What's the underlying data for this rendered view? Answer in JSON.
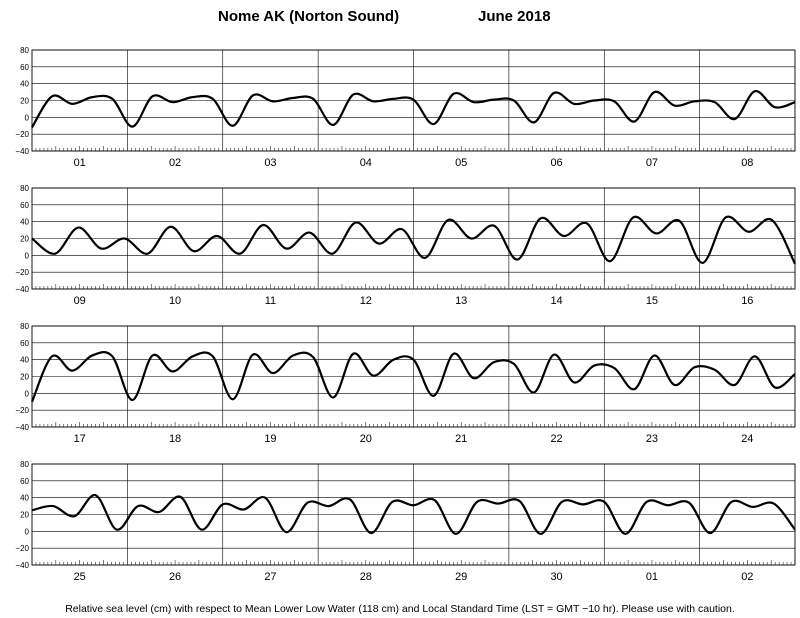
{
  "chart_data": {
    "type": "line",
    "title": "Nome AK (Norton Sound)",
    "title_month": "June   2018",
    "ylabel_units": "cm",
    "ylim": [
      -40,
      80
    ],
    "yticks": [
      -40,
      -20,
      0,
      20,
      40,
      60,
      80
    ],
    "grid": true,
    "footnote": "Relative sea level (cm) with respect to Mean Lower Low Water (118 cm) and Local Standard Time (LST = GMT −10 hr). Please use with caution.",
    "panels": [
      {
        "days": [
          "01",
          "02",
          "03",
          "04",
          "05",
          "06",
          "07",
          "08"
        ],
        "series": [
          {
            "values": [
              -12,
              25,
              16,
              24,
              22,
              -11,
              25,
              18,
              24,
              22,
              -10,
              26,
              19,
              23,
              22,
              -9,
              27,
              19,
              22,
              21,
              -8,
              28,
              18,
              21,
              20,
              -6,
              29,
              16,
              20,
              19,
              -5,
              30,
              14,
              19,
              18,
              -2,
              31,
              12,
              18
            ]
          }
        ]
      },
      {
        "days": [
          "09",
          "10",
          "11",
          "12",
          "13",
          "14",
          "15",
          "16"
        ],
        "series": [
          {
            "values": [
              20,
              2,
              33,
              8,
              20,
              2,
              34,
              5,
              23,
              2,
              36,
              8,
              27,
              2,
              39,
              14,
              31,
              -3,
              42,
              20,
              35,
              -5,
              44,
              23,
              38,
              -7,
              45,
              26,
              41,
              -9,
              45,
              28,
              42,
              -10
            ]
          }
        ]
      },
      {
        "days": [
          "17",
          "18",
          "19",
          "20",
          "21",
          "22",
          "23",
          "24"
        ],
        "series": [
          {
            "values": [
              -10,
              44,
              27,
              45,
              44,
              -8,
              45,
              26,
              44,
              44,
              -7,
              46,
              24,
              45,
              43,
              -5,
              47,
              21,
              40,
              40,
              -3,
              47,
              18,
              37,
              35,
              1,
              46,
              13,
              33,
              30,
              5,
              45,
              10,
              31,
              28,
              10,
              44,
              7,
              23
            ]
          }
        ]
      },
      {
        "days": [
          "25",
          "26",
          "27",
          "28",
          "29",
          "30",
          "01",
          "02"
        ],
        "series": [
          {
            "values": [
              25,
              30,
              18,
              43,
              2,
              30,
              23,
              41,
              2,
              32,
              26,
              40,
              -1,
              34,
              30,
              38,
              -2,
              35,
              31,
              37,
              -3,
              35,
              33,
              36,
              -3,
              35,
              32,
              35,
              -3,
              35,
              31,
              34,
              -2,
              35,
              29,
              33,
              2
            ]
          }
        ]
      }
    ]
  }
}
